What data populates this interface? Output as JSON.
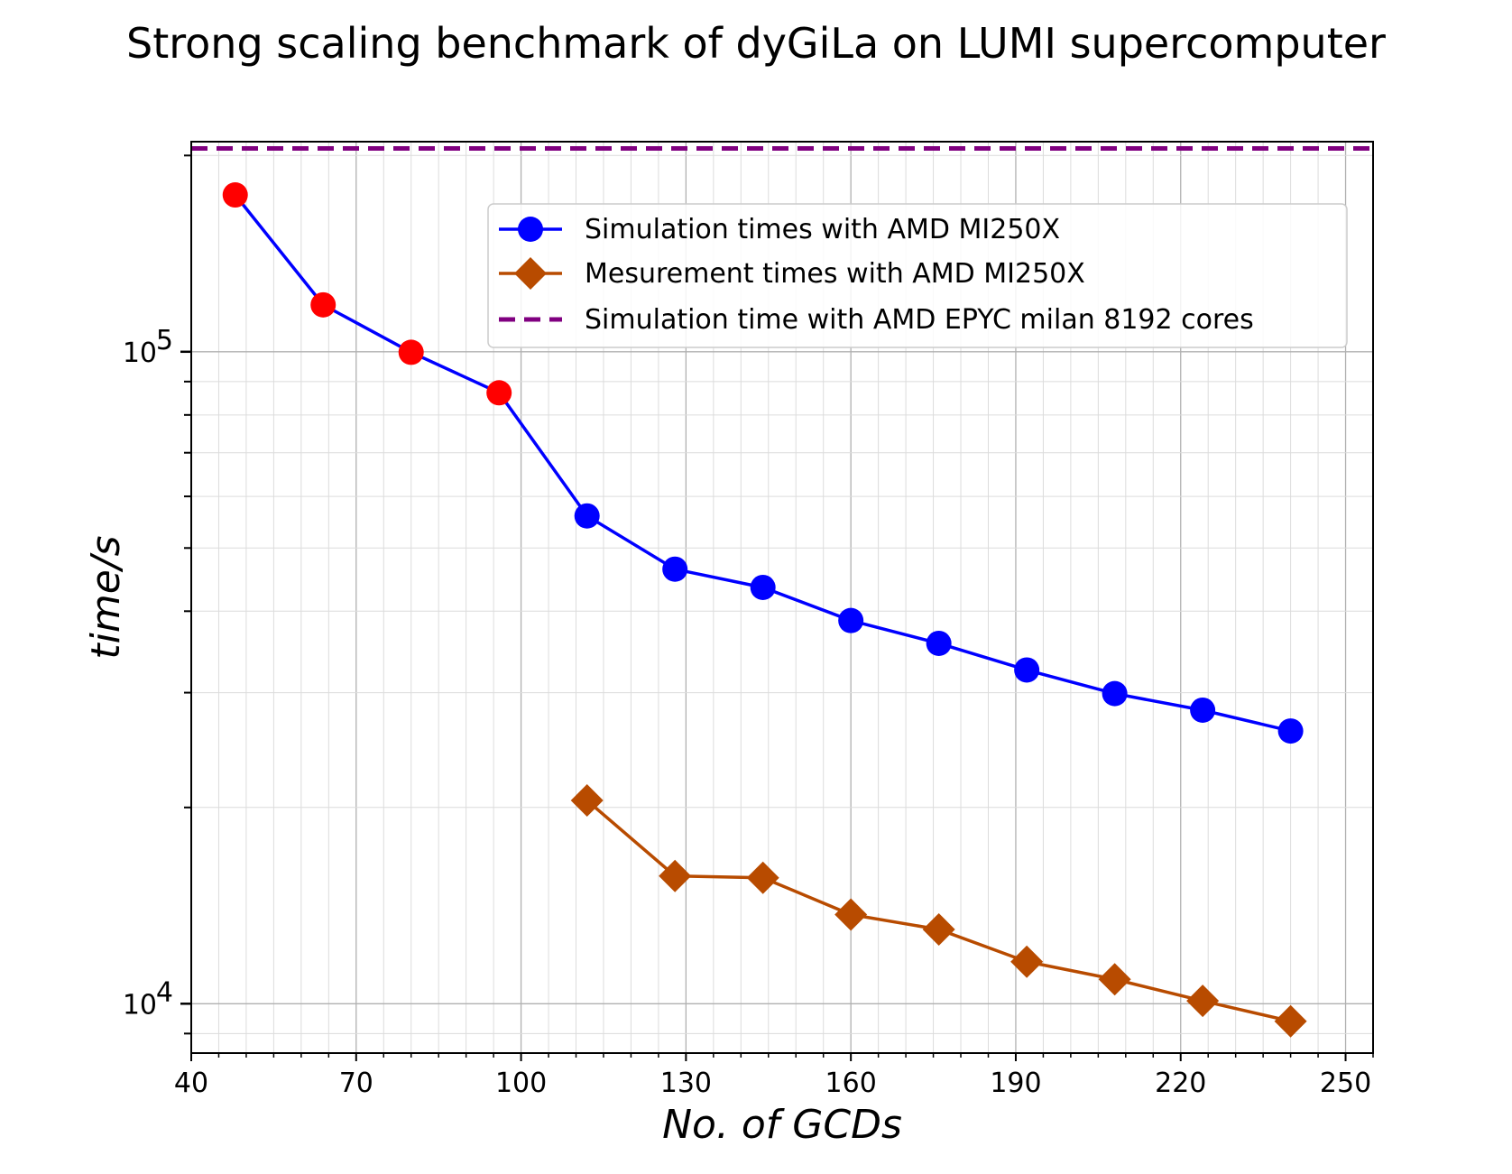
{
  "chart_data": {
    "type": "line",
    "title": "Strong scaling benchmark of dyGiLa on LUMI supercomputer",
    "xlabel": "No. of GCDs",
    "ylabel": "time/s",
    "xlim": [
      40,
      255
    ],
    "ylim": [
      8400,
      210000
    ],
    "yscale": "log",
    "xticks": [
      40,
      70,
      100,
      130,
      160,
      190,
      220,
      250
    ],
    "yticks": [
      {
        "value": 10000,
        "base": "10",
        "exp": "4"
      },
      {
        "value": 100000,
        "base": "10",
        "exp": "5"
      }
    ],
    "grid": true,
    "legend_position": "upper right",
    "series": [
      {
        "name": "Simulation times with AMD MI250X",
        "marker": "circle",
        "color": "#0000ff",
        "x": [
          48,
          64,
          80,
          96,
          112,
          128,
          144,
          160,
          176,
          192,
          208,
          224,
          240
        ],
        "values": [
          174000,
          118000,
          99800,
          86500,
          56000,
          46400,
          43500,
          38700,
          35700,
          32500,
          29900,
          28200,
          26200
        ],
        "point_colors": [
          "#ff0000",
          "#ff0000",
          "#ff0000",
          "#ff0000",
          "#0000ff",
          "#0000ff",
          "#0000ff",
          "#0000ff",
          "#0000ff",
          "#0000ff",
          "#0000ff",
          "#0000ff",
          "#0000ff"
        ]
      },
      {
        "name": "Mesurement times with AMD MI250X",
        "marker": "diamond",
        "color": "#b84b00",
        "x": [
          112,
          128,
          144,
          160,
          176,
          192,
          208,
          224,
          240
        ],
        "values": [
          20500,
          15700,
          15600,
          13700,
          13000,
          11600,
          10900,
          10100,
          9400
        ]
      },
      {
        "name": "Simulation time with AMD EPYC milan 8192 cores",
        "style": "dashed",
        "color": "#800080",
        "values": [
          205000
        ]
      }
    ]
  }
}
